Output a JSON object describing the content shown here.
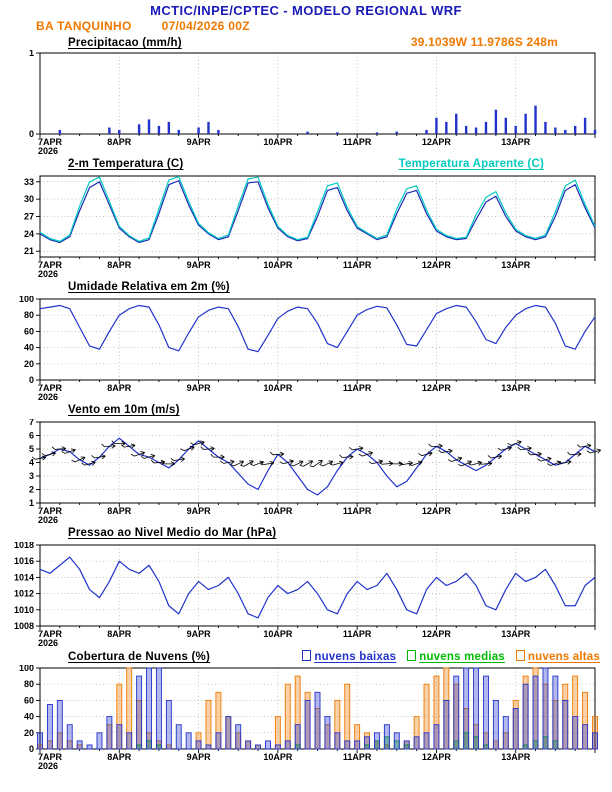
{
  "header": {
    "title": "MCTIC/INPE/CPTEC - MODELO REGIONAL WRF",
    "station": "BA TANQUINHO",
    "run": "07/04/2026 00Z",
    "location": "39.1039W 11.9786S 248m"
  },
  "colors": {
    "title_blue": "#1a1ab8",
    "orange": "#f07800",
    "line_blue": "#2233cc",
    "cyan": "#00ccc0",
    "green": "#00bb00",
    "grid": "#b0b0b0",
    "black": "#000000"
  },
  "x_axis": {
    "total_hours": 168,
    "step_hours": 3,
    "minor_step_hours": 6,
    "tick_hours": [
      0,
      24,
      48,
      72,
      96,
      120,
      144
    ],
    "tick_labels": [
      "7APR",
      "8APR",
      "9APR",
      "10APR",
      "11APR",
      "12APR",
      "13APR"
    ],
    "start_label_year": "2026"
  },
  "chart_data": [
    {
      "id": "precipitation",
      "type": "bar",
      "title": "Precipitacao (mm/h)",
      "ylim": [
        0,
        1
      ],
      "yticks": [
        0,
        1
      ],
      "series": [
        {
          "name": "precipitacao",
          "color": "#2233cc",
          "values": [
            0,
            0,
            0.05,
            0,
            0,
            0,
            0,
            0.08,
            0.05,
            0,
            0.12,
            0.18,
            0.1,
            0.15,
            0.05,
            0,
            0.08,
            0.15,
            0.05,
            0,
            0,
            0,
            0,
            0,
            0,
            0,
            0,
            0.03,
            0,
            0,
            0.02,
            0,
            0,
            0,
            0.02,
            0,
            0.03,
            0,
            0,
            0.05,
            0.2,
            0.15,
            0.25,
            0.1,
            0.08,
            0.15,
            0.3,
            0.2,
            0.1,
            0.25,
            0.35,
            0.15,
            0.08,
            0.05,
            0.1,
            0.2,
            0.05
          ]
        }
      ]
    },
    {
      "id": "temperature",
      "type": "line",
      "title": "2-m Temperatura (C)",
      "legend": [
        {
          "label": "Temperatura Aparente (C)",
          "color": "#00ccc0"
        }
      ],
      "ylim": [
        20,
        34
      ],
      "yticks": [
        21,
        24,
        27,
        30,
        33
      ],
      "series": [
        {
          "name": "2-m temperatura",
          "color": "#1a2bb8",
          "values": [
            24.0,
            23.0,
            22.5,
            23.5,
            28.0,
            32.0,
            33.0,
            29.0,
            25.0,
            23.5,
            22.5,
            23.0,
            27.5,
            32.5,
            33.2,
            29.0,
            25.5,
            24.0,
            23.0,
            23.5,
            28.0,
            32.8,
            33.0,
            28.5,
            25.0,
            23.5,
            22.8,
            23.2,
            27.0,
            31.5,
            32.0,
            28.0,
            25.0,
            24.0,
            23.0,
            23.5,
            27.5,
            31.0,
            31.5,
            27.5,
            24.5,
            23.5,
            23.0,
            23.2,
            26.5,
            29.5,
            30.5,
            27.0,
            24.5,
            23.5,
            23.0,
            23.5,
            27.0,
            31.5,
            32.5,
            28.5,
            25.0
          ]
        },
        {
          "name": "temperatura aparente",
          "color": "#00ccc0",
          "values": [
            24.3,
            23.2,
            22.7,
            23.8,
            28.8,
            33.0,
            33.8,
            29.6,
            25.3,
            23.7,
            22.7,
            23.3,
            28.3,
            33.3,
            33.9,
            29.6,
            25.8,
            24.2,
            23.2,
            23.8,
            28.8,
            33.5,
            33.8,
            29.1,
            25.3,
            23.7,
            23.0,
            23.4,
            27.8,
            32.3,
            32.8,
            28.6,
            25.3,
            24.2,
            23.2,
            23.8,
            28.3,
            31.8,
            32.3,
            28.1,
            24.8,
            23.7,
            23.2,
            23.4,
            27.3,
            30.3,
            31.3,
            27.6,
            24.8,
            23.7,
            23.2,
            23.8,
            27.8,
            32.3,
            33.3,
            29.1,
            25.3
          ]
        }
      ]
    },
    {
      "id": "humidity",
      "type": "line",
      "title": "Umidade Relativa em 2m (%)",
      "ylim": [
        0,
        100
      ],
      "yticks": [
        0,
        20,
        40,
        60,
        80,
        100
      ],
      "series": [
        {
          "name": "umidade relativa",
          "color": "#2233cc",
          "values": [
            88,
            90,
            92,
            88,
            65,
            42,
            38,
            60,
            80,
            88,
            92,
            90,
            68,
            40,
            36,
            58,
            78,
            86,
            90,
            88,
            66,
            38,
            35,
            55,
            76,
            85,
            90,
            88,
            70,
            45,
            40,
            60,
            80,
            87,
            91,
            89,
            68,
            44,
            42,
            62,
            82,
            88,
            92,
            90,
            72,
            50,
            45,
            65,
            80,
            88,
            92,
            90,
            70,
            42,
            38,
            60,
            78
          ]
        }
      ]
    },
    {
      "id": "wind",
      "type": "wind",
      "title": "Vento em 10m (m/s)",
      "ylim": [
        1,
        7
      ],
      "yticks": [
        1,
        2,
        3,
        4,
        5,
        6,
        7
      ],
      "series": [
        {
          "name": "vento velocidade",
          "color": "#2233cc",
          "values": [
            4.3,
            4.6,
            5.0,
            4.8,
            4.2,
            3.8,
            4.4,
            5.2,
            5.8,
            5.2,
            4.6,
            4.4,
            4.0,
            3.6,
            4.2,
            5.0,
            5.6,
            5.0,
            4.4,
            4.0,
            3.2,
            2.4,
            2.0,
            3.4,
            4.6,
            4.0,
            3.0,
            2.0,
            1.6,
            2.2,
            3.4,
            4.4,
            5.0,
            4.6,
            4.0,
            3.0,
            2.2,
            2.6,
            3.6,
            4.6,
            5.2,
            4.8,
            4.2,
            3.8,
            3.4,
            3.8,
            4.4,
            5.0,
            5.4,
            5.0,
            4.6,
            4.2,
            3.8,
            4.0,
            4.6,
            5.2,
            4.8
          ]
        }
      ],
      "barbs": {
        "name": "vento direcao",
        "color": "#000000",
        "clamp_min": 3.9,
        "clamp_max": 5.4,
        "angles": [
          -10,
          -15,
          -5,
          -20,
          -25,
          -15,
          -10,
          -5,
          0,
          -10,
          -20,
          -15,
          -5,
          0,
          -10,
          -20,
          -15,
          -5,
          0,
          -10,
          -25,
          -30,
          -20,
          -10,
          -5,
          -15,
          -25,
          -30,
          -35,
          -25,
          -15,
          -5,
          -10,
          -20,
          -15,
          -5,
          0,
          -10,
          -20,
          -15,
          -5,
          -10,
          -20,
          -25,
          -15,
          -5,
          -10,
          -15,
          -20,
          -10,
          -5,
          -15,
          -20,
          -10,
          -5,
          -10,
          -15
        ]
      }
    },
    {
      "id": "pressure",
      "type": "line",
      "title": "Pressao ao Nivel Medio do Mar (hPa)",
      "ylim": [
        1008,
        1018
      ],
      "yticks": [
        1008,
        1010,
        1012,
        1014,
        1016,
        1018
      ],
      "series": [
        {
          "name": "pressao",
          "color": "#2233cc",
          "values": [
            1015.0,
            1014.5,
            1015.5,
            1016.5,
            1015.0,
            1012.5,
            1011.5,
            1013.5,
            1016.0,
            1015.0,
            1014.5,
            1015.5,
            1013.5,
            1010.5,
            1009.5,
            1012.0,
            1013.5,
            1012.5,
            1013.0,
            1014.0,
            1012.0,
            1009.5,
            1009.0,
            1011.5,
            1013.0,
            1012.0,
            1012.5,
            1013.5,
            1012.0,
            1010.0,
            1009.5,
            1012.0,
            1013.5,
            1012.5,
            1013.0,
            1014.5,
            1012.5,
            1010.0,
            1009.5,
            1012.5,
            1014.0,
            1013.0,
            1013.5,
            1014.5,
            1013.0,
            1010.5,
            1010.0,
            1012.5,
            1014.5,
            1013.5,
            1014.0,
            1015.0,
            1013.0,
            1010.5,
            1010.5,
            1013.0,
            1014.0
          ]
        }
      ]
    },
    {
      "id": "clouds",
      "type": "cloudbar",
      "title": "Cobertura de Nuvens (%)",
      "legend": [
        {
          "label": "nuvens baixas",
          "color": "#2233cc"
        },
        {
          "label": "nuvens medias",
          "color": "#00bb00"
        },
        {
          "label": "nuvens altas",
          "color": "#f07800"
        }
      ],
      "ylim": [
        0,
        100
      ],
      "yticks": [
        0,
        20,
        40,
        60,
        80,
        100
      ],
      "series": [
        {
          "name": "nuvens baixas",
          "color": "#2233cc",
          "values": [
            20,
            55,
            60,
            30,
            10,
            5,
            20,
            40,
            30,
            20,
            90,
            100,
            100,
            60,
            30,
            20,
            10,
            5,
            20,
            40,
            30,
            10,
            5,
            10,
            5,
            10,
            30,
            60,
            70,
            40,
            20,
            10,
            10,
            15,
            20,
            30,
            20,
            10,
            15,
            20,
            30,
            60,
            90,
            100,
            100,
            90,
            60,
            40,
            50,
            80,
            90,
            100,
            90,
            60,
            40,
            30,
            20
          ]
        },
        {
          "name": "nuvens medias",
          "color": "#00bb00",
          "values": [
            0,
            0,
            0,
            0,
            0,
            0,
            0,
            0,
            0,
            0,
            5,
            10,
            5,
            0,
            0,
            0,
            0,
            0,
            0,
            0,
            0,
            0,
            0,
            0,
            0,
            0,
            5,
            0,
            0,
            0,
            0,
            0,
            0,
            5,
            10,
            15,
            10,
            5,
            0,
            0,
            0,
            0,
            10,
            20,
            15,
            5,
            0,
            0,
            0,
            5,
            10,
            15,
            10,
            0,
            0,
            0,
            0
          ]
        },
        {
          "name": "nuvens altas",
          "color": "#f07800",
          "values": [
            5,
            10,
            20,
            10,
            5,
            0,
            0,
            30,
            80,
            100,
            60,
            20,
            10,
            5,
            0,
            0,
            20,
            60,
            70,
            40,
            20,
            10,
            5,
            0,
            40,
            80,
            90,
            70,
            50,
            30,
            60,
            80,
            30,
            20,
            10,
            5,
            0,
            10,
            40,
            80,
            90,
            100,
            80,
            50,
            30,
            20,
            10,
            20,
            60,
            90,
            100,
            80,
            60,
            80,
            90,
            70,
            40
          ]
        }
      ]
    }
  ]
}
